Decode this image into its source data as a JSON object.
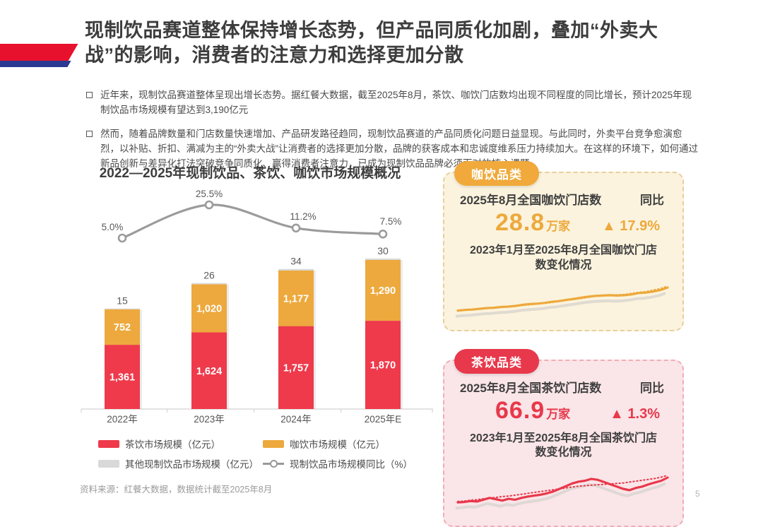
{
  "page": {
    "number": "5"
  },
  "header": {
    "title": "现制饮品赛道整体保持增长态势，但产品同质化加剧，叠加“外卖大战”的影响，消费者的注意力和选择更加分散"
  },
  "bullets": [
    {
      "text": "近年来，现制饮品赛道整体呈现出增长态势。据红餐大数据，截至2025年8月，茶饮、咖饮门店数均出现不同程度的同比增长，预计2025年现制饮品市场规模有望达到3,190亿元"
    },
    {
      "text": "然而，随着品牌数量和门店数量快速增加、产品研发路径趋同，现制饮品赛道的产品同质化问题日益显现。与此同时，外卖平台竞争愈演愈烈，以补贴、折扣、满减为主的“外卖大战”让消费者的选择更加分散，品牌的获客成本和忠诚度维系压力持续加大。在这样的环境下，如何通过新品创新与差异化打法突破竞争同质化、赢得消费者注意力，已成为现制饮品品牌必须面对的核心课题"
    }
  ],
  "chart_data": [
    {
      "type": "bar+line",
      "title": "2022—2025年现制饮品、茶饮、咖饮市场规模概况",
      "categories": [
        "2022年",
        "2023年",
        "2024年",
        "2025年E"
      ],
      "stacked": true,
      "ylabel": "亿元",
      "series": [
        {
          "name": "茶饮市场规模（亿元）",
          "type": "bar",
          "color": "#ee3a4b",
          "values": [
            1361,
            1624,
            1757,
            1870
          ],
          "labels": [
            "1,361",
            "1,624",
            "1,757",
            "1,870"
          ]
        },
        {
          "name": "咖饮市场规模（亿元）",
          "type": "bar",
          "color": "#eda93d",
          "values": [
            752,
            1020,
            1177,
            1290
          ],
          "labels": [
            "752",
            "1,020",
            "1,177",
            "1,290"
          ]
        },
        {
          "name": "其他现制饮品市场规模（亿元）",
          "type": "bar",
          "color": "#d9d9d9",
          "values": [
            15,
            26,
            34,
            30
          ],
          "labels": [
            "15",
            "26",
            "34",
            "30"
          ]
        },
        {
          "name": "现制饮品市场规模同比（%）",
          "type": "line",
          "color": "#9b9b9b",
          "values": [
            5.0,
            25.5,
            11.2,
            7.5
          ],
          "labels": [
            "5.0%",
            "25.5%",
            "11.2%",
            "7.5%"
          ]
        }
      ]
    },
    {
      "type": "line",
      "title": "2023年1月至2025年8月全国咖饮门店数变化情况",
      "note": "sparkline, unlabeled axes, values normalized 0-1",
      "series": [
        {
          "name": "咖饮门店数",
          "style": "solid",
          "values": [
            0.14,
            0.16,
            0.17,
            0.19,
            0.21,
            0.22,
            0.24,
            0.25,
            0.27,
            0.3,
            0.32,
            0.33,
            0.35,
            0.38,
            0.4,
            0.43,
            0.46,
            0.49,
            0.52,
            0.54,
            0.55,
            0.56,
            0.55,
            0.56,
            0.58,
            0.62,
            0.63,
            0.66,
            0.7,
            0.77
          ]
        },
        {
          "name": "趋势（虚线）",
          "style": "dotted",
          "values": [
            0.13,
            0.15,
            0.16,
            0.18,
            0.2,
            0.21,
            0.23,
            0.24,
            0.26,
            0.28,
            0.3,
            0.32,
            0.34,
            0.36,
            0.39,
            0.42,
            0.44,
            0.47,
            0.5,
            0.53,
            0.55,
            0.57,
            0.57,
            0.58,
            0.61,
            0.64,
            0.66,
            0.7,
            0.74,
            0.81
          ]
        }
      ]
    },
    {
      "type": "line",
      "title": "2023年1月至2025年8月全国茶饮门店数变化情况",
      "note": "sparkline, unlabeled axes, values normalized 0-1",
      "series": [
        {
          "name": "茶饮门店数",
          "style": "solid",
          "values": [
            0.2,
            0.21,
            0.23,
            0.22,
            0.26,
            0.3,
            0.27,
            0.24,
            0.28,
            0.26,
            0.3,
            0.33,
            0.35,
            0.37,
            0.4,
            0.44,
            0.5,
            0.56,
            0.62,
            0.66,
            0.68,
            0.72,
            0.7,
            0.65,
            0.6,
            0.55,
            0.5,
            0.47,
            0.52,
            0.55,
            0.6,
            0.64,
            0.68,
            0.75
          ]
        },
        {
          "name": "趋势（虚线）",
          "style": "dotted",
          "values": [
            0.22,
            0.23,
            0.25,
            0.26,
            0.28,
            0.3,
            0.31,
            0.33,
            0.34,
            0.36,
            0.38,
            0.4,
            0.42,
            0.44,
            0.46,
            0.48,
            0.5,
            0.52,
            0.54,
            0.56,
            0.57,
            0.58,
            0.59,
            0.6,
            0.61,
            0.62,
            0.63,
            0.65,
            0.67,
            0.69,
            0.71,
            0.73,
            0.76,
            0.8
          ]
        }
      ]
    }
  ],
  "source": "资料来源：红餐大数据，数据统计截至2025年8月",
  "cards": [
    {
      "badge": "咖饮品类",
      "accent": "#eda93d",
      "badge_color": "#f0a93a",
      "stat_label": "2025年8月全国咖饮门店数",
      "yoy_label": "同比",
      "value": "28.8",
      "unit": "万家",
      "yoy": "▲ 17.9%",
      "trend_title": "2023年1月至2025年8月全国咖饮门店数变化情况"
    },
    {
      "badge": "茶饮品类",
      "accent": "#e8384b",
      "badge_color": "#e8384b",
      "stat_label": "2025年8月全国茶饮门店数",
      "yoy_label": "同比",
      "value": "66.9",
      "unit": "万家",
      "yoy": "▲ 1.3%",
      "trend_title": "2023年1月至2025年8月全国茶饮门店数变化情况"
    }
  ],
  "colors": {
    "ribbon_red": "#e8112d",
    "ribbon_navy": "#2b3990",
    "tea": "#ee3a4b",
    "coffee": "#eda93d",
    "other": "#d9d9d9",
    "line": "#9b9b9b"
  }
}
